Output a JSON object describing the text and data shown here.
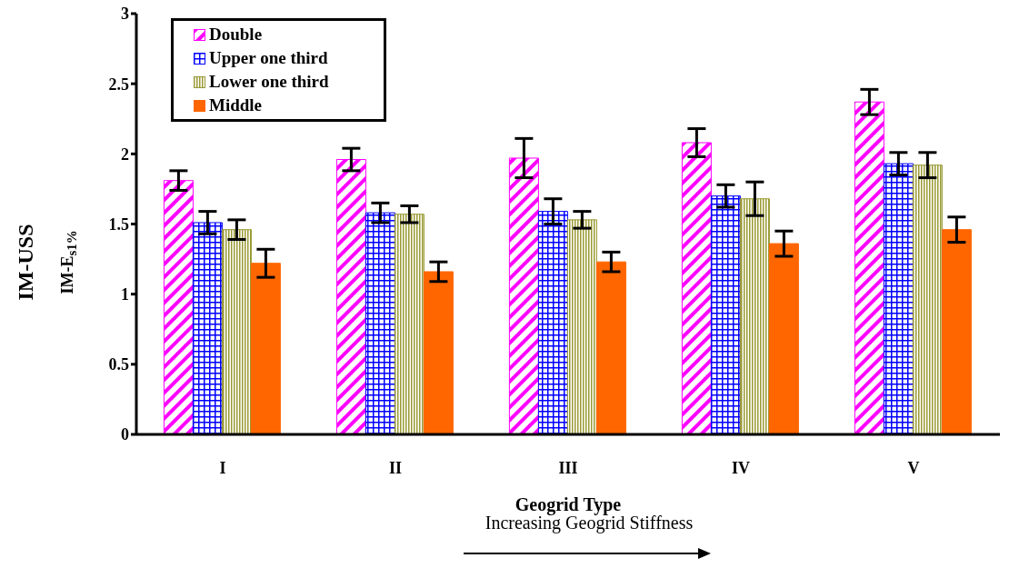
{
  "chart_data": {
    "type": "bar",
    "xlabel": "Geogrid Type",
    "ylabel": "IM-USS",
    "annotations": [
      "IM-E$_{s1%}$",
      "Increasing Geogrid Stiffness"
    ],
    "categories": [
      "I",
      "II",
      "III",
      "IV",
      "V"
    ],
    "series": [
      {
        "name": "Double",
        "color": "#ff00ff",
        "values": [
          1.81,
          1.96,
          1.97,
          2.08,
          2.37
        ],
        "errors": [
          0.07,
          0.08,
          0.14,
          0.1,
          0.09
        ]
      },
      {
        "name": "Upper one third",
        "color": "#0000ff",
        "values": [
          1.51,
          1.58,
          1.59,
          1.7,
          1.93
        ],
        "errors": [
          0.08,
          0.07,
          0.09,
          0.08,
          0.08
        ]
      },
      {
        "name": "Lower one third",
        "color": "#999933",
        "values": [
          1.46,
          1.57,
          1.53,
          1.68,
          1.92
        ],
        "errors": [
          0.07,
          0.06,
          0.06,
          0.12,
          0.09
        ]
      },
      {
        "name": "Middle",
        "color": "#ff6600",
        "values": [
          1.22,
          1.16,
          1.23,
          1.36,
          1.46
        ],
        "errors": [
          0.1,
          0.07,
          0.07,
          0.09,
          0.09
        ]
      }
    ],
    "ylim": [
      0,
      3
    ],
    "yticks": [
      0,
      0.5,
      1,
      1.5,
      2,
      2.5,
      3
    ],
    "grid": false,
    "legend": "top left"
  }
}
